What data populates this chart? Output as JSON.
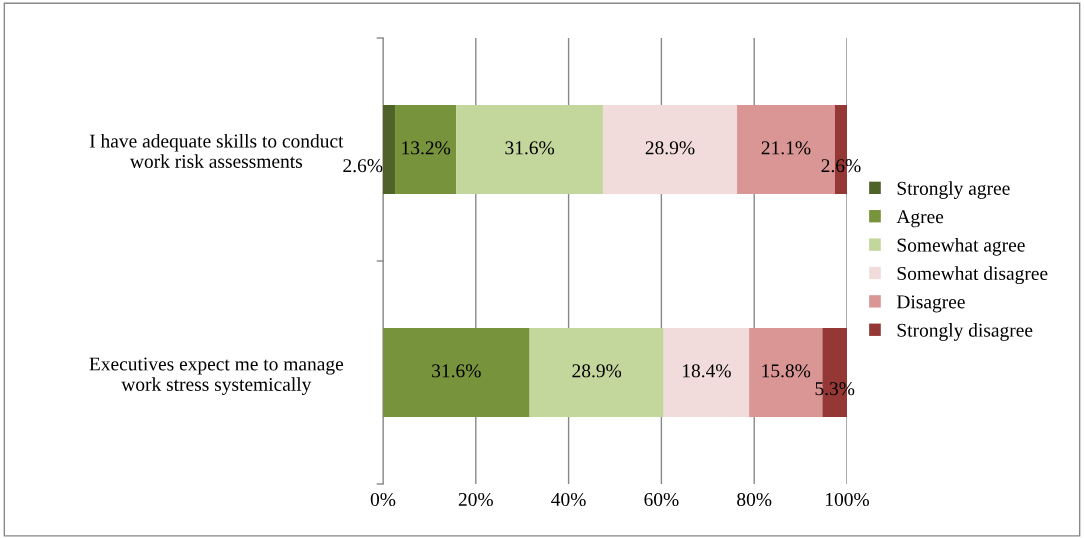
{
  "chart_data": {
    "type": "bar",
    "orientation": "horizontal",
    "stacked": true,
    "categories": [
      "I have adequate skills to conduct work risk assessments",
      "Executives expect me to manage work stress systemically"
    ],
    "series": [
      {
        "name": "Strongly agree",
        "color": "#4f6228",
        "values": [
          2.6,
          0
        ],
        "value_labels": [
          "2.6%",
          null
        ]
      },
      {
        "name": "Agree",
        "color": "#77933c",
        "values": [
          13.2,
          31.6
        ],
        "value_labels": [
          "13.2%",
          "31.6%"
        ]
      },
      {
        "name": "Somewhat agree",
        "color": "#c3d69b",
        "values": [
          31.6,
          28.9
        ],
        "value_labels": [
          "31.6%",
          "28.9%"
        ]
      },
      {
        "name": "Somewhat disagree",
        "color": "#f2dcdb",
        "values": [
          28.9,
          18.4
        ],
        "value_labels": [
          "28.9%",
          "18.4%"
        ]
      },
      {
        "name": "Disagree",
        "color": "#d99694",
        "values": [
          21.1,
          15.8
        ],
        "value_labels": [
          "21.1%",
          "15.8%"
        ]
      },
      {
        "name": "Strongly disagree",
        "color": "#953735",
        "values": [
          2.6,
          5.3
        ],
        "value_labels": [
          "2.6%",
          "5.3%"
        ]
      }
    ],
    "xlim": [
      0,
      100
    ],
    "xticks": [
      {
        "value": 0,
        "label": "0%"
      },
      {
        "value": 20,
        "label": "20%"
      },
      {
        "value": 40,
        "label": "40%"
      },
      {
        "value": 60,
        "label": "60%"
      },
      {
        "value": 80,
        "label": "80%"
      },
      {
        "value": 100,
        "label": "100%"
      }
    ],
    "grid": "x",
    "legend": "right"
  }
}
